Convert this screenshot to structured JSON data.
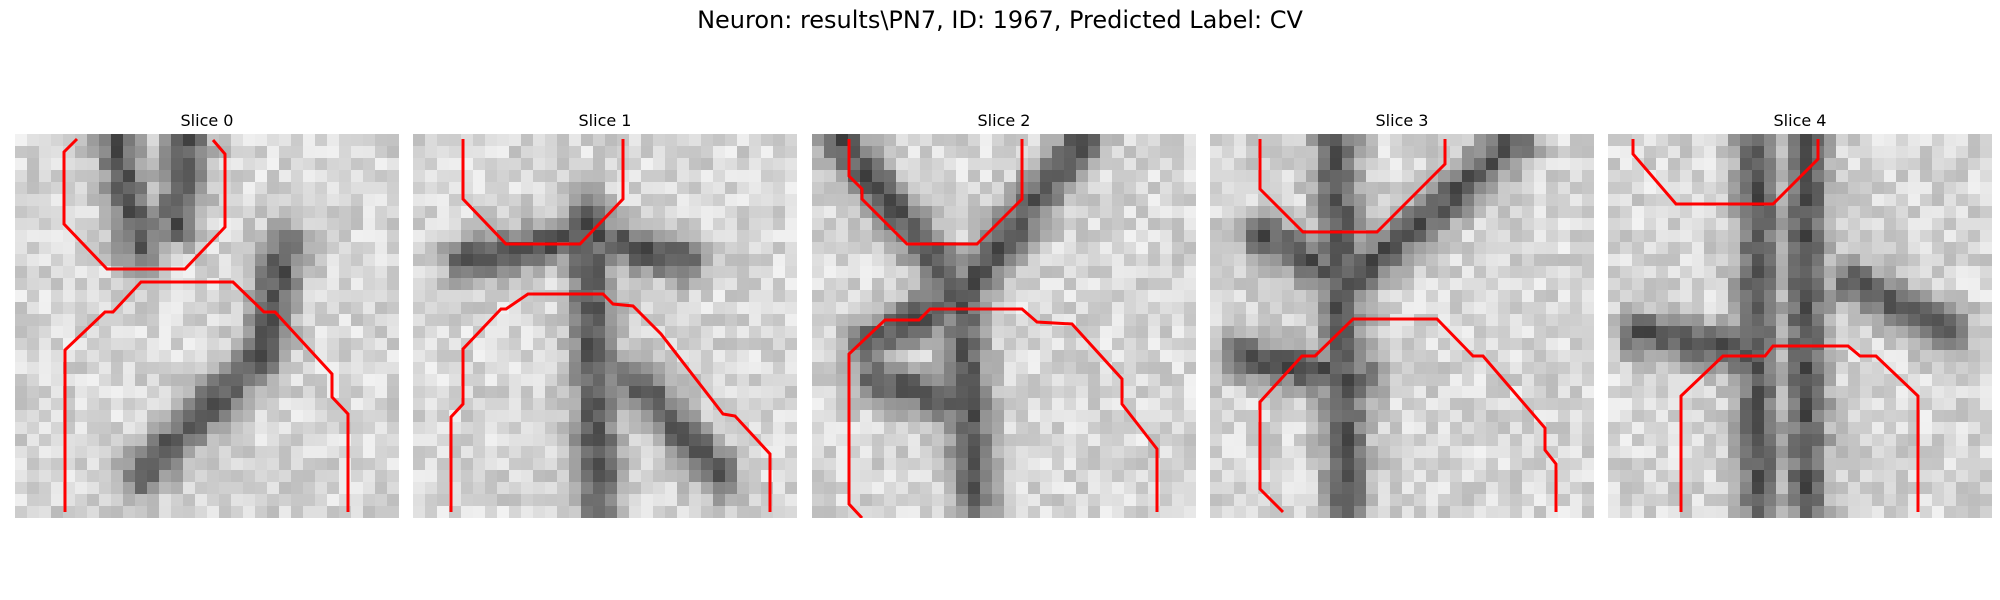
{
  "figure": {
    "title": "Neuron: results\\PN7, ID: 1967, Predicted Label: CV"
  },
  "slices": [
    {
      "label": "Slice 0",
      "contour_color": "#ff0000"
    },
    {
      "label": "Slice 1",
      "contour_color": "#ff0000"
    },
    {
      "label": "Slice 2",
      "contour_color": "#ff0000"
    },
    {
      "label": "Slice 3",
      "contour_color": "#ff0000"
    },
    {
      "label": "Slice 4",
      "contour_color": "#ff0000"
    }
  ]
}
